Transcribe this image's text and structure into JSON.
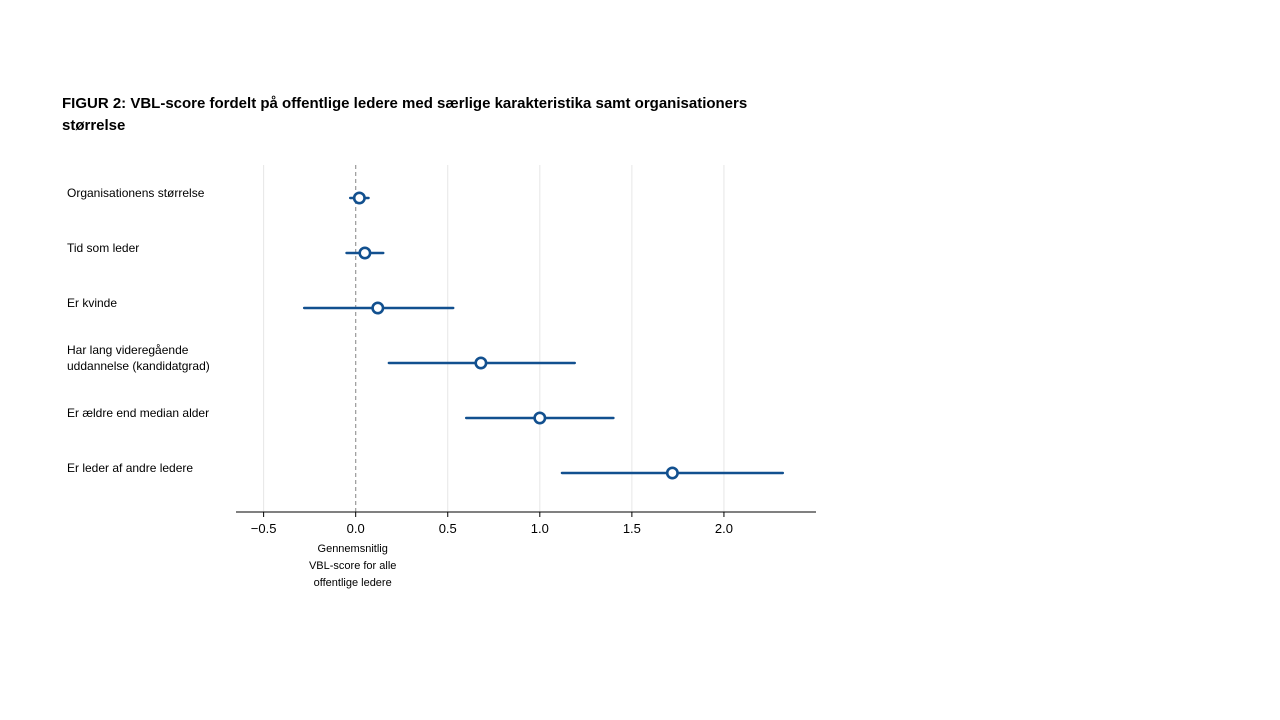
{
  "title": "FIGUR 2: VBL-score fordelt på offentlige ledere med særlige karakteristika samt organisationers størrelse",
  "chart_data": {
    "type": "scatter",
    "subtype": "forest-plot",
    "title": "FIGUR 2: VBL-score fordelt på offentlige ledere med særlige karakteristika samt organisationers størrelse",
    "xlabel": "",
    "ylabel": "",
    "xlim": [
      -0.65,
      2.5
    ],
    "xticks": [
      -0.5,
      0.0,
      0.5,
      1.0,
      1.5,
      2.0
    ],
    "xtick_labels": [
      "−0.5",
      "0.0",
      "0.5",
      "1.0",
      "1.5",
      "2.0"
    ],
    "grid": "vertical",
    "reference_line": {
      "x": 0,
      "style": "dashed",
      "label_lines": [
        "Gennemsnitlig",
        "VBL-score for alle",
        "offentlige ledere"
      ]
    },
    "color": "#12508f",
    "points": [
      {
        "label_lines": [
          "Organisationens størrelse"
        ],
        "estimate": 0.02,
        "ci_low": -0.03,
        "ci_high": 0.07
      },
      {
        "label_lines": [
          "Tid som leder"
        ],
        "estimate": 0.05,
        "ci_low": -0.05,
        "ci_high": 0.15
      },
      {
        "label_lines": [
          "Er kvinde"
        ],
        "estimate": 0.12,
        "ci_low": -0.28,
        "ci_high": 0.53
      },
      {
        "label_lines": [
          "Har lang videregående",
          "uddannelse (kandidatgrad)"
        ],
        "estimate": 0.68,
        "ci_low": 0.18,
        "ci_high": 1.19
      },
      {
        "label_lines": [
          "Er ældre end median alder"
        ],
        "estimate": 1.0,
        "ci_low": 0.6,
        "ci_high": 1.4
      },
      {
        "label_lines": [
          "Er leder af andre ledere"
        ],
        "estimate": 1.72,
        "ci_low": 1.12,
        "ci_high": 2.32
      }
    ]
  }
}
